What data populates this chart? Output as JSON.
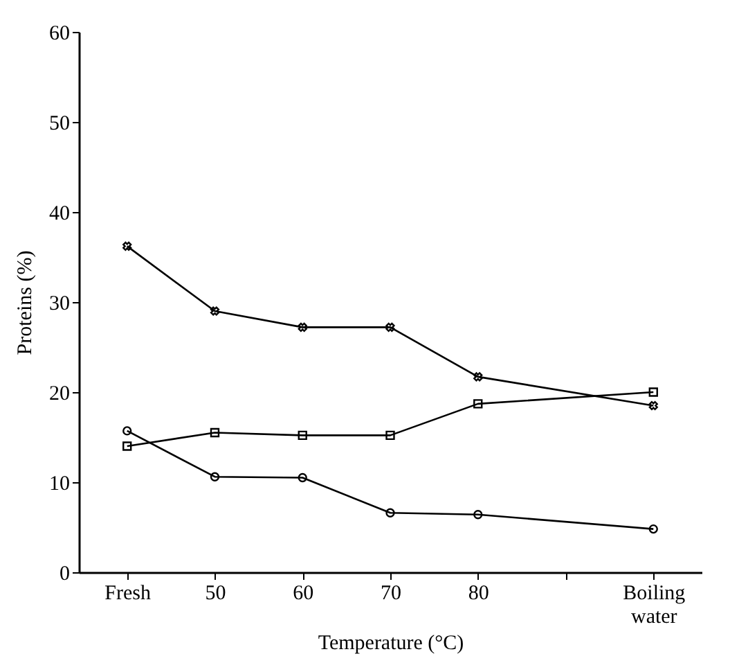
{
  "chart_data": {
    "type": "line",
    "xlabel": "Temperature (°C)",
    "ylabel": "Proteins (%)",
    "categories": [
      "Fresh",
      "50",
      "60",
      "70",
      "80",
      null,
      "Boiling water"
    ],
    "ylim": [
      0,
      60
    ],
    "yticks": [
      0,
      10,
      20,
      30,
      40,
      50,
      60
    ],
    "grid": false,
    "line_style": "solid",
    "series": [
      {
        "color": "#000000",
        "marker": "cross",
        "values": [
          36.2,
          29.0,
          27.2,
          27.2,
          21.7,
          null,
          18.5
        ]
      },
      {
        "color": "#000000",
        "marker": "square",
        "values": [
          14.0,
          15.5,
          15.2,
          15.2,
          18.7,
          null,
          20.0
        ]
      },
      {
        "color": "#000000",
        "marker": "circle",
        "values": [
          15.7,
          10.6,
          10.5,
          6.6,
          6.4,
          null,
          4.8
        ]
      }
    ]
  }
}
